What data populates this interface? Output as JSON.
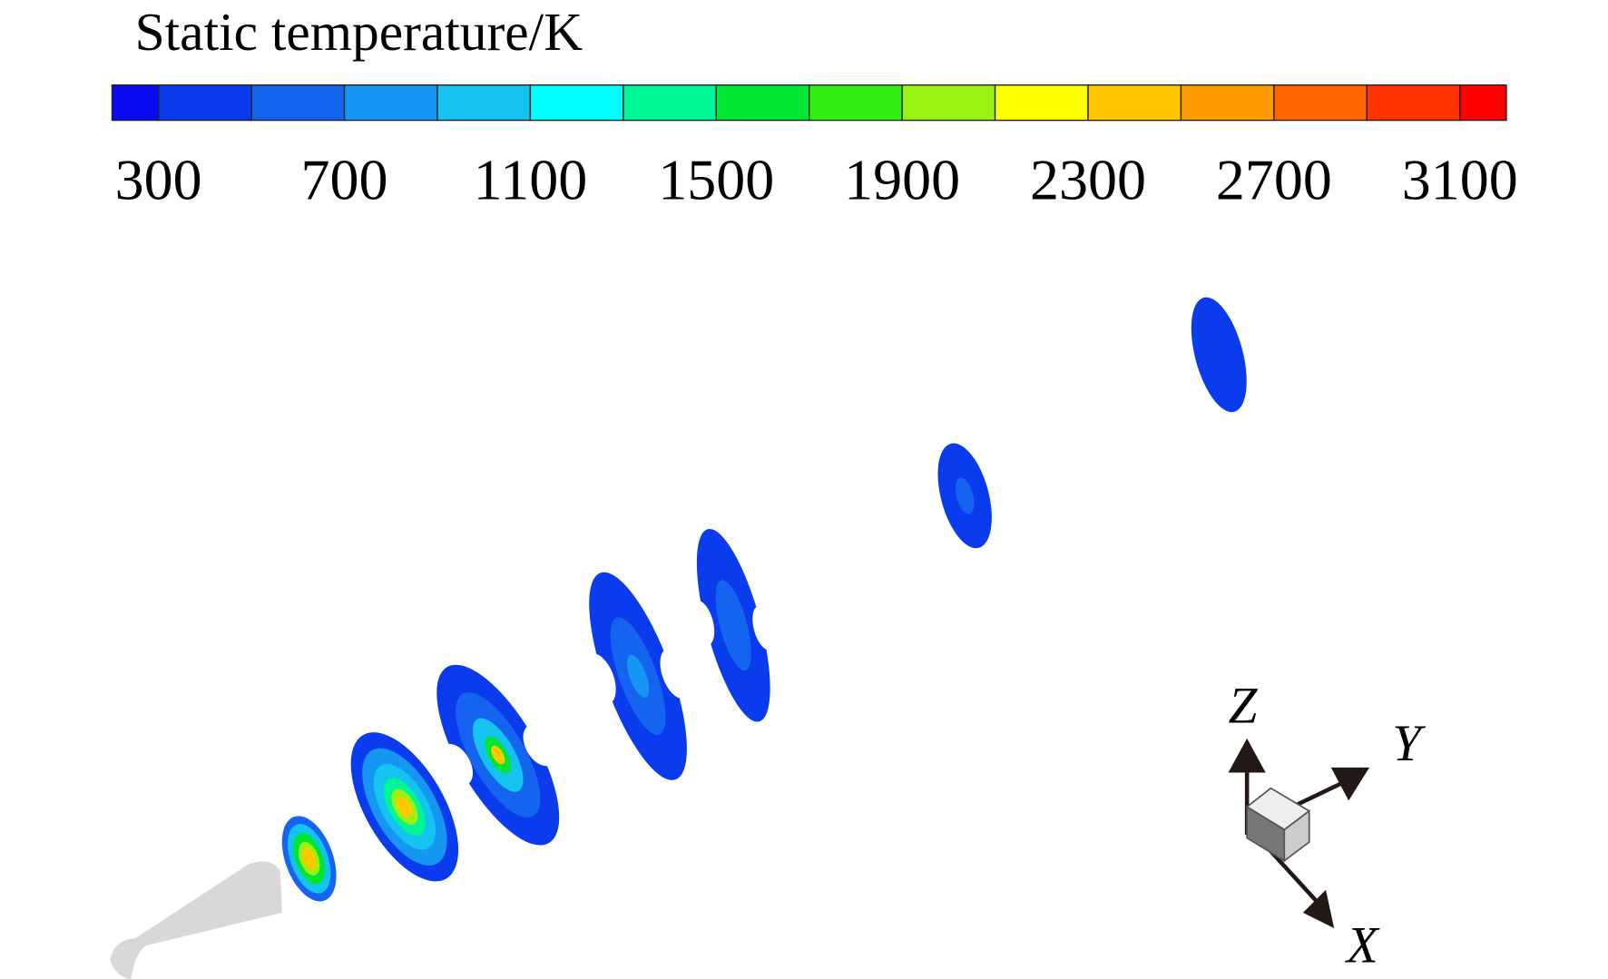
{
  "colorbar": {
    "title": "Static temperature/K",
    "levels": [
      200,
      300,
      500,
      700,
      900,
      1100,
      1300,
      1500,
      1700,
      1900,
      2100,
      2300,
      2500,
      2700,
      2900,
      3100,
      3200
    ],
    "colors": [
      "#0a0af0",
      "#0a3ced",
      "#1464f0",
      "#1496f2",
      "#14c3f0",
      "#00ffff",
      "#00f596",
      "#00e632",
      "#32f014",
      "#9bf014",
      "#ffff00",
      "#ffc800",
      "#ff9b00",
      "#ff6400",
      "#ff3200",
      "#ff0000"
    ],
    "ticks": [
      300,
      700,
      1100,
      1500,
      1900,
      2300,
      2700,
      3100
    ]
  },
  "axes": {
    "z": "Z",
    "y": "Y",
    "x": "X"
  }
}
